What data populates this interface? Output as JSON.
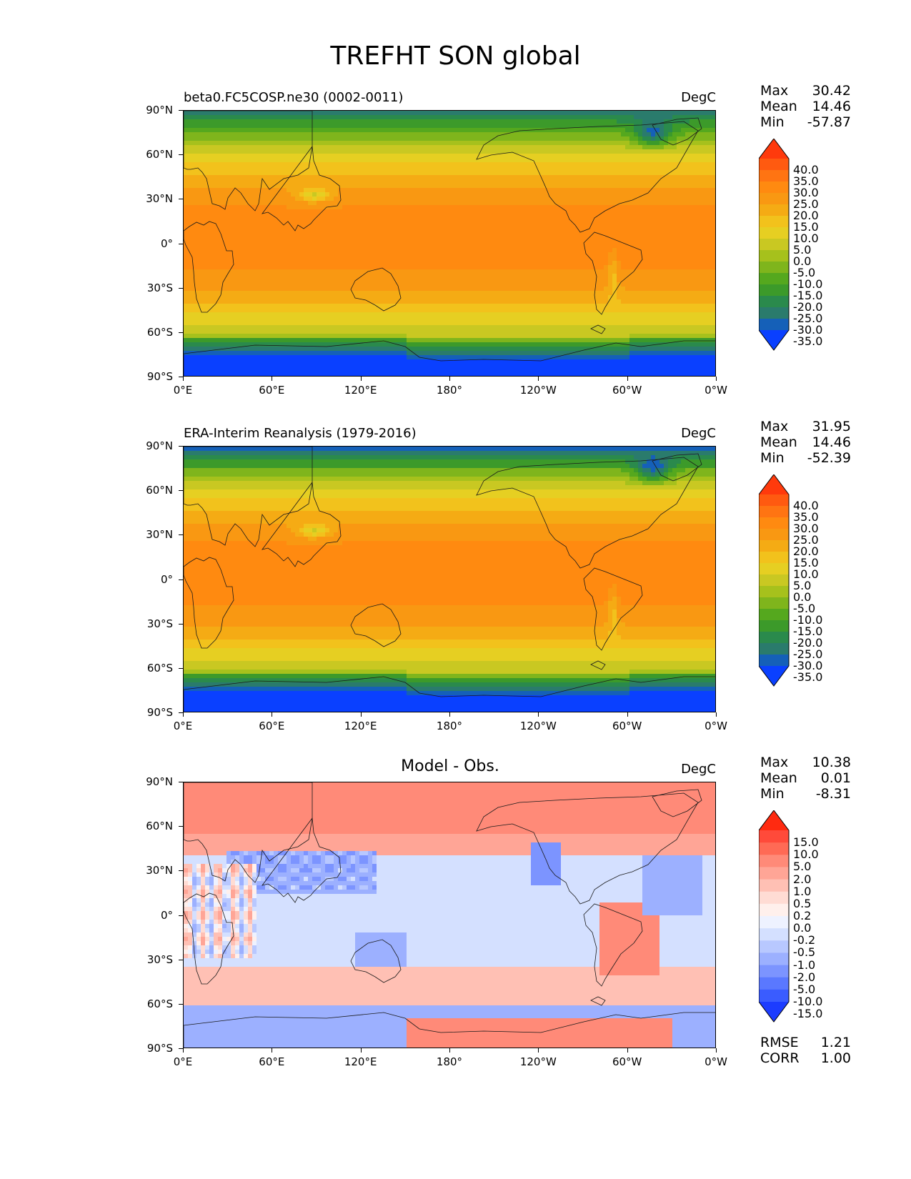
{
  "title": "TREFHT SON global",
  "lat_labels": [
    "90°N",
    "60°N",
    "30°N",
    "0°",
    "30°S",
    "60°S",
    "90°S"
  ],
  "lon_labels": [
    "0°E",
    "60°E",
    "120°E",
    "180°",
    "120°W",
    "60°W",
    "0°W"
  ],
  "panels": [
    {
      "title": "beta0.FC5COSP.ne30 (0002-0011)",
      "title_style": "left",
      "units": "DegC",
      "stats": {
        "max_label": "Max",
        "max": "30.42",
        "mean_label": "Mean",
        "mean": "14.46",
        "min_label": "Min",
        "min": "-57.87"
      },
      "colorbar": {
        "labels": [
          "40.0",
          "35.0",
          "30.0",
          "25.0",
          "20.0",
          "15.0",
          "10.0",
          "5.0",
          "0.0",
          "-5.0",
          "-10.0",
          "-15.0",
          "-20.0",
          "-25.0",
          "-30.0",
          "-35.0"
        ],
        "colors": [
          "#ff3a0c",
          "#ff5a10",
          "#ff7412",
          "#ff8a10",
          "#f99812",
          "#f5ab14",
          "#f2c21c",
          "#e6cf22",
          "#c9c822",
          "#a6c11c",
          "#7fb51c",
          "#55a81e",
          "#3c9a2a",
          "#2a8a4c",
          "#2a7b6c",
          "#1560b8",
          "#0a40ff"
        ]
      }
    },
    {
      "title": "ERA-Interim Reanalysis (1979-2016)",
      "title_style": "left",
      "units": "DegC",
      "stats": {
        "max_label": "Max",
        "max": "31.95",
        "mean_label": "Mean",
        "mean": "14.46",
        "min_label": "Min",
        "min": "-52.39"
      },
      "colorbar": {
        "labels": [
          "40.0",
          "35.0",
          "30.0",
          "25.0",
          "20.0",
          "15.0",
          "10.0",
          "5.0",
          "0.0",
          "-5.0",
          "-10.0",
          "-15.0",
          "-20.0",
          "-25.0",
          "-30.0",
          "-35.0"
        ],
        "colors": [
          "#ff3a0c",
          "#ff5a10",
          "#ff7412",
          "#ff8a10",
          "#f99812",
          "#f5ab14",
          "#f2c21c",
          "#e6cf22",
          "#c9c822",
          "#a6c11c",
          "#7fb51c",
          "#55a81e",
          "#3c9a2a",
          "#2a8a4c",
          "#2a7b6c",
          "#1560b8",
          "#0a40ff"
        ]
      }
    },
    {
      "title": "Model - Obs.",
      "title_style": "center",
      "units": "DegC",
      "stats": {
        "max_label": "Max",
        "max": "10.38",
        "mean_label": "Mean",
        "mean": "0.01",
        "min_label": "Min",
        "min": "-8.31"
      },
      "colorbar": {
        "labels": [
          "15.0",
          "10.0",
          "5.0",
          "2.0",
          "1.0",
          "0.5",
          "0.2",
          "0.0",
          "-0.2",
          "-0.5",
          "-1.0",
          "-2.0",
          "-5.0",
          "-10.0",
          "-15.0"
        ],
        "colors": [
          "#ff2a10",
          "#ff4a3a",
          "#ff6a55",
          "#ff8a78",
          "#ffa596",
          "#ffc0b4",
          "#ffdcd4",
          "#fff0ec",
          "#eef2ff",
          "#d4e0ff",
          "#b8c8ff",
          "#9cb0ff",
          "#7c94ff",
          "#5a78ff",
          "#3a5cff",
          "#1c3cff"
        ]
      },
      "extra": {
        "rmse_label": "RMSE",
        "rmse": "1.21",
        "corr_label": "CORR",
        "corr": "1.00"
      }
    }
  ]
}
